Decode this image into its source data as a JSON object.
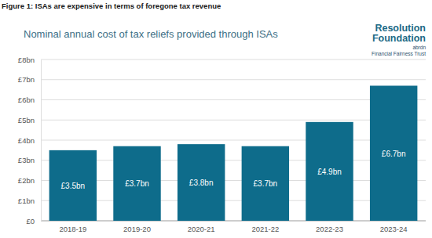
{
  "chart_data": {
    "type": "bar",
    "title": "Figure 1: ISAs are expensive in terms of foregone tax revenue",
    "subtitle": "Nominal annual cost of tax reliefs provided through ISAs",
    "annotations": [
      "Resolution",
      "Foundation",
      "abrdn",
      "Financial Fairness Trust"
    ],
    "categories": [
      "2018-19",
      "2019-20",
      "2020-21",
      "2021-22",
      "2022-23",
      "2023-24"
    ],
    "values": [
      3.5,
      3.7,
      3.8,
      3.7,
      4.9,
      6.7
    ],
    "value_labels": [
      "£3.5bn",
      "£3.7bn",
      "£3.8bn",
      "£3.7bn",
      "£4.9bn",
      "£6.7bn"
    ],
    "color": "#0e6c8b",
    "ylim": [
      0,
      8
    ],
    "yticks": [
      {
        "value": 0,
        "label": "£0"
      },
      {
        "value": 1,
        "label": "£1bn"
      },
      {
        "value": 2,
        "label": "£2bn"
      },
      {
        "value": 3,
        "label": "£3bn"
      },
      {
        "value": 4,
        "label": "£4bn"
      },
      {
        "value": 5,
        "label": "£5bn"
      },
      {
        "value": 6,
        "label": "£6bn"
      },
      {
        "value": 7,
        "label": "£7bn"
      },
      {
        "value": 8,
        "label": "£8bn"
      }
    ],
    "grid": true,
    "data_labels": true
  }
}
